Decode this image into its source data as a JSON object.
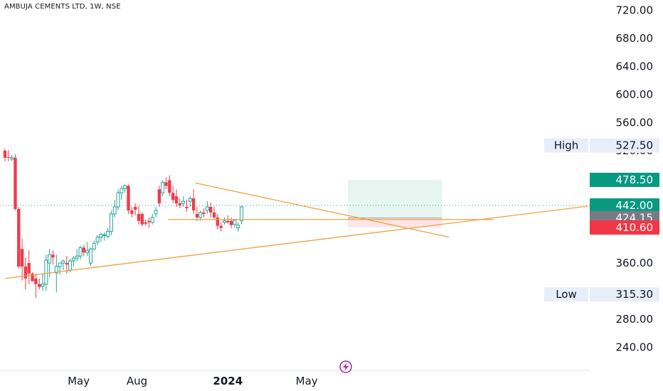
{
  "title": "AMBUJA CEMENTS LTD, 1W, NSE",
  "colors": {
    "up": "#26a69a",
    "down": "#ef3b4b",
    "trend": "#f0a040",
    "profit_zone": "#e6f5f0",
    "loss_zone": "#fde5e8",
    "tag_green": "#089981",
    "tag_gray": "#787b86",
    "tag_red": "#f23645",
    "hl_bg": "#e8eef9"
  },
  "chart_data": {
    "type": "candlestick",
    "ylim": [
      220,
      740
    ],
    "y_ticks": [
      {
        "v": 720,
        "label": "720.00"
      },
      {
        "v": 680,
        "label": "680.00"
      },
      {
        "v": 640,
        "label": "640.00"
      },
      {
        "v": 600,
        "label": "600.00"
      },
      {
        "v": 560,
        "label": "560.00"
      },
      {
        "v": 520,
        "label": "520.00"
      },
      {
        "v": 360,
        "label": "360.00"
      },
      {
        "v": 280,
        "label": "280.00"
      },
      {
        "v": 240,
        "label": "240.00"
      }
    ],
    "x_ticks": [
      {
        "i": 21.5,
        "label": "May",
        "bold": false
      },
      {
        "i": 38.5,
        "label": "Aug",
        "bold": false
      },
      {
        "i": 65,
        "label": "2024",
        "bold": true
      },
      {
        "i": 88,
        "label": "May",
        "bold": false
      }
    ],
    "candles": [
      [
        520,
        523,
        505,
        510
      ],
      [
        511,
        521,
        505,
        510
      ],
      [
        508,
        514,
        505,
        510
      ],
      [
        510,
        515,
        435,
        437
      ],
      [
        437,
        440,
        352,
        355
      ],
      [
        380,
        395,
        335,
        355
      ],
      [
        355,
        368,
        322,
        338
      ],
      [
        360,
        378,
        330,
        345
      ],
      [
        345,
        347,
        335,
        334
      ],
      [
        338,
        345,
        310,
        330
      ],
      [
        330,
        338,
        322,
        326
      ],
      [
        327,
        345,
        320,
        330
      ],
      [
        330,
        372,
        320,
        364
      ],
      [
        360,
        380,
        340,
        372
      ],
      [
        372,
        378,
        358,
        368
      ],
      [
        346,
        372,
        318,
        355
      ],
      [
        355,
        360,
        343,
        360
      ],
      [
        360,
        365,
        350,
        363
      ],
      [
        360,
        370,
        345,
        358
      ],
      [
        350,
        366,
        347,
        363
      ],
      [
        363,
        370,
        355,
        367
      ],
      [
        367,
        380,
        362,
        370
      ],
      [
        370,
        385,
        365,
        382
      ],
      [
        382,
        386,
        370,
        375
      ],
      [
        375,
        390,
        370,
        378
      ],
      [
        360,
        382,
        356,
        380
      ],
      [
        380,
        392,
        378,
        388
      ],
      [
        390,
        400,
        385,
        397
      ],
      [
        397,
        403,
        390,
        401
      ],
      [
        399,
        404,
        392,
        400
      ],
      [
        398,
        410,
        395,
        405
      ],
      [
        405,
        435,
        400,
        430
      ],
      [
        430,
        450,
        425,
        440
      ],
      [
        440,
        465,
        435,
        460
      ],
      [
        460,
        470,
        450,
        466
      ],
      [
        466,
        472,
        460,
        470
      ],
      [
        470,
        472,
        430,
        435
      ],
      [
        435,
        440,
        425,
        430
      ],
      [
        440,
        445,
        428,
        436
      ],
      [
        430,
        441,
        415,
        420
      ],
      [
        430,
        432,
        412,
        415
      ],
      [
        418,
        422,
        413,
        416
      ],
      [
        420,
        425,
        410,
        418
      ],
      [
        418,
        430,
        415,
        425
      ],
      [
        430,
        440,
        425,
        435
      ],
      [
        465,
        470,
        440,
        445
      ],
      [
        460,
        478,
        455,
        475
      ],
      [
        475,
        482,
        465,
        470
      ],
      [
        478,
        485,
        455,
        460
      ],
      [
        460,
        470,
        445,
        450
      ],
      [
        455,
        465,
        440,
        445
      ],
      [
        445,
        452,
        438,
        442
      ],
      [
        445,
        455,
        440,
        448
      ],
      [
        440,
        450,
        433,
        438
      ],
      [
        448,
        455,
        440,
        452
      ],
      [
        452,
        465,
        430,
        435
      ],
      [
        430,
        440,
        420,
        425
      ],
      [
        425,
        435,
        420,
        432
      ],
      [
        432,
        438,
        425,
        430
      ],
      [
        435,
        448,
        430,
        440
      ],
      [
        440,
        446,
        425,
        432
      ],
      [
        432,
        440,
        422,
        425
      ],
      [
        425,
        430,
        408,
        413
      ],
      [
        413,
        418,
        405,
        410
      ],
      [
        418,
        425,
        415,
        420
      ],
      [
        420,
        428,
        416,
        418
      ],
      [
        420,
        425,
        410,
        414
      ],
      [
        415,
        422,
        410,
        421
      ],
      [
        410,
        418,
        405,
        414
      ],
      [
        420,
        442,
        415,
        440
      ]
    ],
    "trendlines": [
      {
        "name": "descending-resistance",
        "from": [
          55.5,
          474
        ],
        "to": [
          129.5,
          397
        ]
      },
      {
        "name": "horizontal-support",
        "from": [
          47.5,
          422
        ],
        "to": [
          142.5,
          422
        ]
      },
      {
        "name": "ascending-support",
        "from": [
          0,
          338
        ],
        "to": [
          170,
          441
        ]
      }
    ],
    "position": {
      "entry": 424.15,
      "target": 478.5,
      "stop": 410.6,
      "from_i": 100,
      "to_i": 127.5
    },
    "dotted_line": 442,
    "tags": [
      {
        "name": "price-478",
        "v": 478.5,
        "label": "478.50",
        "color": "#089981"
      },
      {
        "name": "price-442",
        "v": 442,
        "label": "442.00",
        "color": "#089981"
      },
      {
        "name": "price-424",
        "v": 424.15,
        "label": "424.15",
        "color": "#787b86"
      },
      {
        "name": "price-410",
        "v": 410.6,
        "label": "410.60",
        "color": "#f23645"
      }
    ],
    "high": {
      "text": "High",
      "v": 527.5,
      "label": "527.50"
    },
    "low": {
      "text": "Low",
      "v": 315.3,
      "label": "315.30"
    }
  }
}
